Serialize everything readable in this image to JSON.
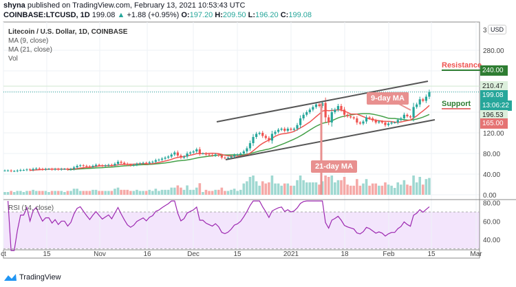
{
  "header": {
    "line1_user": "shyna",
    "line1_rest": "published on TradingView.com, February 13, 2021 10:53:43 UTC",
    "symbol": "COINBASE:LTCUSD, 1D",
    "last": "199.08",
    "change": "+1.88 (+0.95%)",
    "o_label": "O:",
    "o": "197.20",
    "h_label": "H:",
    "h": "209.50",
    "l_label": "L:",
    "l": "196.20",
    "c_label": "C:",
    "c": "199.08"
  },
  "legend": {
    "title": "Litecoin / U.S. Dollar, 1D, COINBASE",
    "ma9": "MA (9, close)",
    "ma21": "MA (21, close)",
    "vol": "Vol",
    "rsi": "RSI (14, close)"
  },
  "currency": "USD",
  "annotations": {
    "ma9": "9-day MA",
    "ma21": "21-day MA",
    "resistance": "Resistance",
    "support": "Support"
  },
  "price_tags": {
    "resistance": "240.00",
    "high": "210.47",
    "last": "199.08",
    "countdown": "13:06:22",
    "low": "196.53",
    "support": "165.00"
  },
  "colors": {
    "up": "#26a69a",
    "down": "#ef5350",
    "ma9": "#ef5350",
    "ma21": "#43a047",
    "rsi": "#9c27b0",
    "resistance": "#2e7d32",
    "support": "#e57373"
  },
  "branding": "TradingView",
  "chart_data": {
    "type": "candlestick",
    "title": "Litecoin / U.S. Dollar, 1D, COINBASE",
    "x_start": "2020-10-01",
    "x_end": "2021-02-13",
    "price_ticks": [
      "0.00",
      "40.00",
      "80.00",
      "120.00",
      "280.00",
      "3"
    ],
    "price_range": [
      0,
      320
    ],
    "rsi_ticks": [
      "80.00",
      "60.00",
      "40.00"
    ],
    "rsi_bands": [
      30,
      70
    ],
    "x_ticks": [
      "ct",
      "15",
      "Nov",
      "16",
      "Dec",
      "15",
      "2021",
      "18",
      "Feb",
      "15",
      "Mar"
    ],
    "close": [
      47,
      47,
      46,
      46,
      47,
      48,
      48,
      49,
      48,
      50,
      51,
      50,
      49,
      50,
      50,
      49,
      50,
      49,
      50,
      50,
      49,
      50,
      53,
      56,
      57,
      56,
      55,
      54,
      56,
      58,
      57,
      56,
      57,
      58,
      57,
      60,
      64,
      62,
      60,
      58,
      57,
      58,
      60,
      61,
      62,
      61,
      63,
      64,
      67,
      68,
      70,
      72,
      74,
      78,
      82,
      76,
      72,
      74,
      80,
      82,
      84,
      88,
      80,
      80,
      78,
      77,
      76,
      78,
      76,
      72,
      71,
      72,
      74,
      77,
      78,
      80,
      84,
      90,
      100,
      112,
      118,
      120,
      114,
      110,
      105,
      118,
      122,
      126,
      128,
      124,
      128,
      126,
      128,
      135,
      148,
      155,
      160,
      165,
      170,
      175,
      172,
      178,
      150,
      140,
      160,
      165,
      172,
      165,
      155,
      152,
      150,
      148,
      140,
      138,
      142,
      150,
      148,
      144,
      140,
      142,
      140,
      135,
      138,
      140,
      140,
      145,
      148,
      155,
      152,
      150,
      170,
      175,
      185,
      182,
      190,
      199
    ],
    "resistance": 240,
    "support": 165
  }
}
